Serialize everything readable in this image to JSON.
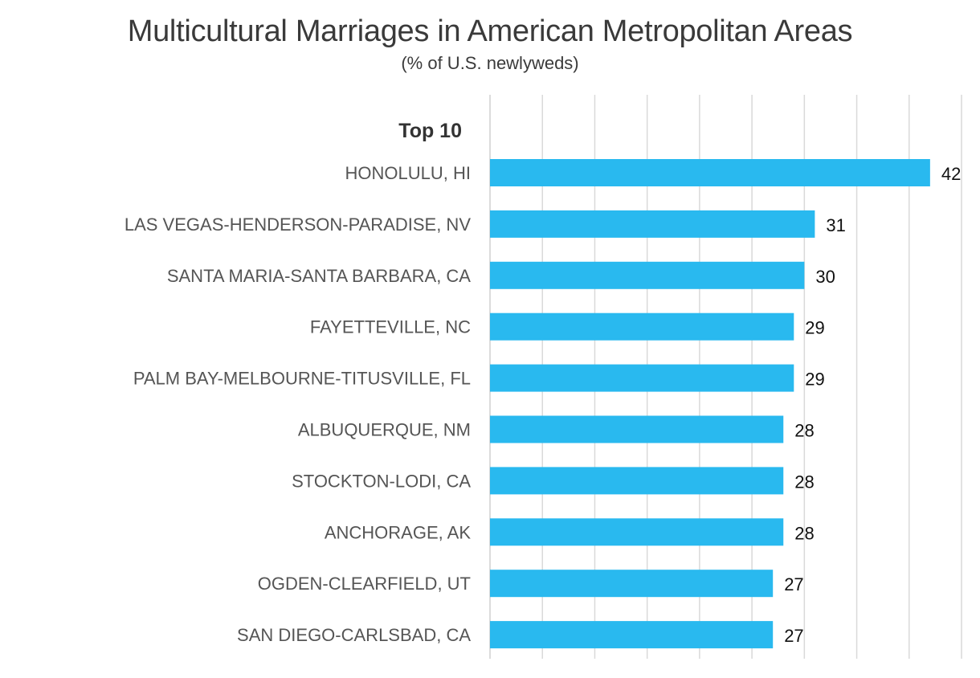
{
  "chart_data": {
    "type": "bar",
    "orientation": "horizontal",
    "title": "Multicultural Marriages in American Metropolitan Areas",
    "subtitle": "(% of U.S. newlyweds)",
    "group_label": "Top 10",
    "categories": [
      "HONOLULU, HI",
      "LAS VEGAS-HENDERSON-PARADISE, NV",
      "SANTA MARIA-SANTA BARBARA, CA",
      "FAYETTEVILLE, NC",
      "PALM BAY-MELBOURNE-TITUSVILLE, FL",
      "ALBUQUERQUE, NM",
      "STOCKTON-LODI, CA",
      "ANCHORAGE, AK",
      "OGDEN-CLEARFIELD, UT",
      "SAN DIEGO-CARLSBAD, CA"
    ],
    "values": [
      42,
      31,
      30,
      29,
      29,
      28,
      28,
      28,
      27,
      27
    ],
    "xlim": [
      0,
      45
    ],
    "grid_step": 5,
    "grid": true,
    "data_labels": true,
    "bar_color": "#29b9ef"
  }
}
